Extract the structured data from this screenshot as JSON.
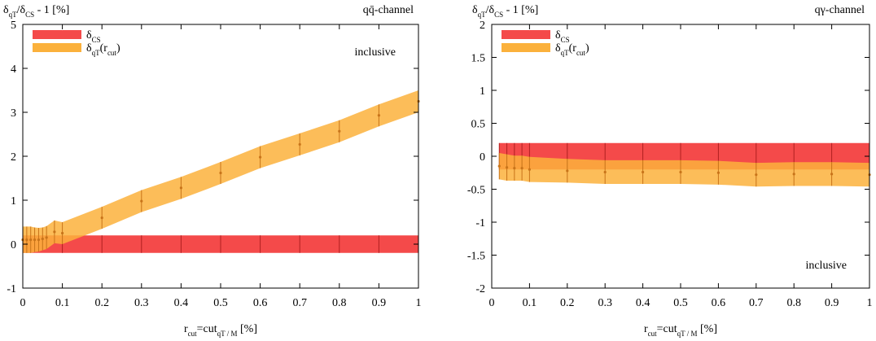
{
  "chart_data": [
    {
      "type": "band",
      "ylabel": [
        "δ",
        "qT",
        "/δ",
        "CS",
        " - 1 [%]"
      ],
      "xlabel": [
        "r",
        "cut",
        "=cut",
        "qT / M",
        " [%]"
      ],
      "channel": "qq̄-channel",
      "annotation": "inclusive",
      "annotation_position": "upper right",
      "xlim": [
        0,
        1
      ],
      "xticks": [
        0,
        0.1,
        0.2,
        0.3,
        0.4,
        0.5,
        0.6,
        0.7,
        0.8,
        0.9,
        1
      ],
      "ylim": [
        -1,
        5
      ],
      "yticks": [
        -1,
        0,
        1,
        2,
        3,
        4,
        5
      ],
      "legend": "upper left",
      "series": [
        {
          "name": [
            "δ",
            "CS"
          ],
          "color": "#f44a4a",
          "markers": false,
          "x": [
            0,
            0.1,
            0.2,
            0.3,
            0.4,
            0.5,
            0.6,
            0.7,
            0.8,
            0.9,
            1
          ],
          "values": [
            0,
            0,
            0,
            0,
            0,
            0,
            0,
            0,
            0,
            0,
            0
          ],
          "errors": [
            0.2,
            0.2,
            0.2,
            0.2,
            0.2,
            0.2,
            0.2,
            0.2,
            0.2,
            0.2,
            0.2
          ]
        },
        {
          "name": [
            "δ",
            "qT",
            "(r",
            "cut",
            ")"
          ],
          "color": "#fbb13c",
          "markers": true,
          "x": [
            0,
            0.01,
            0.02,
            0.03,
            0.04,
            0.05,
            0.06,
            0.08,
            0.1,
            0.2,
            0.3,
            0.4,
            0.5,
            0.6,
            0.7,
            0.8,
            0.9,
            1
          ],
          "values": [
            0.1,
            0.1,
            0.1,
            0.1,
            0.1,
            0.12,
            0.15,
            0.28,
            0.25,
            0.6,
            0.98,
            1.28,
            1.62,
            1.98,
            2.27,
            2.57,
            2.93,
            3.25
          ],
          "errors": [
            0.3,
            0.3,
            0.3,
            0.28,
            0.27,
            0.26,
            0.26,
            0.26,
            0.25,
            0.25,
            0.25,
            0.25,
            0.25,
            0.25,
            0.25,
            0.25,
            0.25,
            0.25
          ]
        }
      ]
    },
    {
      "type": "band",
      "ylabel": [
        "δ",
        "qT",
        "/δ",
        "CS",
        " - 1 [%]"
      ],
      "xlabel": [
        "r",
        "cut",
        "=cut",
        "qT / M",
        " [%]"
      ],
      "channel": "qγ-channel",
      "annotation": "inclusive",
      "annotation_position": "lower right",
      "xlim": [
        0,
        1
      ],
      "xticks": [
        0,
        0.1,
        0.2,
        0.3,
        0.4,
        0.5,
        0.6,
        0.7,
        0.8,
        0.9,
        1
      ],
      "ylim": [
        -2,
        2
      ],
      "yticks": [
        -2,
        -1.5,
        -1,
        -0.5,
        0,
        0.5,
        1,
        1.5,
        2
      ],
      "legend": "upper left",
      "series": [
        {
          "name": [
            "δ",
            "CS"
          ],
          "color": "#f44a4a",
          "markers": false,
          "x": [
            0.02,
            0.04,
            0.06,
            0.08,
            0.1,
            0.2,
            0.3,
            0.4,
            0.5,
            0.6,
            0.7,
            0.8,
            0.9,
            1
          ],
          "values": [
            0,
            0,
            0,
            0,
            0,
            0,
            0,
            0,
            0,
            0,
            0,
            0,
            0,
            0
          ],
          "errors": [
            0.2,
            0.2,
            0.2,
            0.2,
            0.2,
            0.2,
            0.2,
            0.2,
            0.2,
            0.2,
            0.2,
            0.2,
            0.2,
            0.2
          ]
        },
        {
          "name": [
            "δ",
            "qT",
            "(r",
            "cut",
            ")"
          ],
          "color": "#fbb13c",
          "markers": true,
          "x": [
            0.02,
            0.04,
            0.06,
            0.08,
            0.1,
            0.2,
            0.3,
            0.4,
            0.5,
            0.6,
            0.7,
            0.8,
            0.9,
            1
          ],
          "values": [
            -0.15,
            -0.17,
            -0.18,
            -0.18,
            -0.2,
            -0.22,
            -0.24,
            -0.24,
            -0.24,
            -0.25,
            -0.28,
            -0.27,
            -0.27,
            -0.28
          ],
          "errors": [
            0.2,
            0.2,
            0.19,
            0.19,
            0.19,
            0.18,
            0.18,
            0.18,
            0.18,
            0.18,
            0.18,
            0.18,
            0.18,
            0.18
          ]
        }
      ]
    }
  ]
}
